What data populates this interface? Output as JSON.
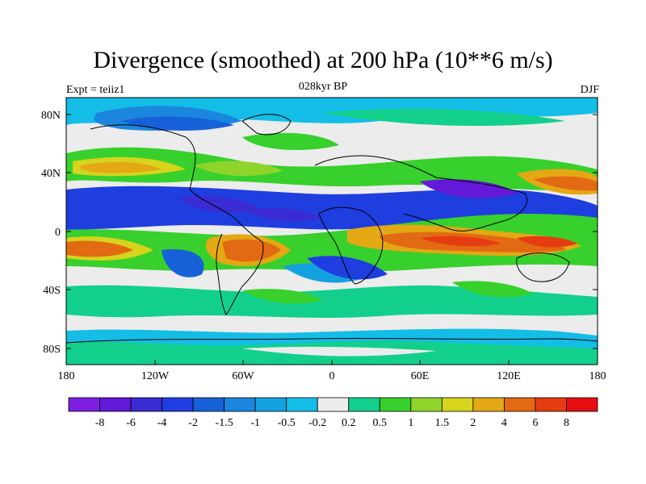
{
  "title": "Divergence (smoothed) at 200 hPa (10**6 m/s)",
  "expt": "Expt = teiiz1",
  "era": "028kyr BP",
  "season": "DJF",
  "lat_ticks": [
    "80N",
    "40N",
    "0",
    "40S",
    "80S"
  ],
  "lon_ticks": [
    "180",
    "120W",
    "60W",
    "0",
    "60E",
    "120E",
    "180"
  ],
  "colorbar": {
    "labels": [
      "-8",
      "-6",
      "-4",
      "-2",
      "-1.5",
      "-1",
      "-0.5",
      "-0.2",
      "0.2",
      "0.5",
      "1",
      "1.5",
      "2",
      "4",
      "6",
      "8"
    ],
    "colors": [
      "#7d1ee0",
      "#6418d8",
      "#3b2bd2",
      "#1e3ee0",
      "#1661d8",
      "#1a86de",
      "#14a1e0",
      "#14bde6",
      "#ececec",
      "#12cf8c",
      "#38d02c",
      "#8ed42a",
      "#d6d41c",
      "#e3a814",
      "#e26a12",
      "#e63c12",
      "#e60c12"
    ]
  }
}
